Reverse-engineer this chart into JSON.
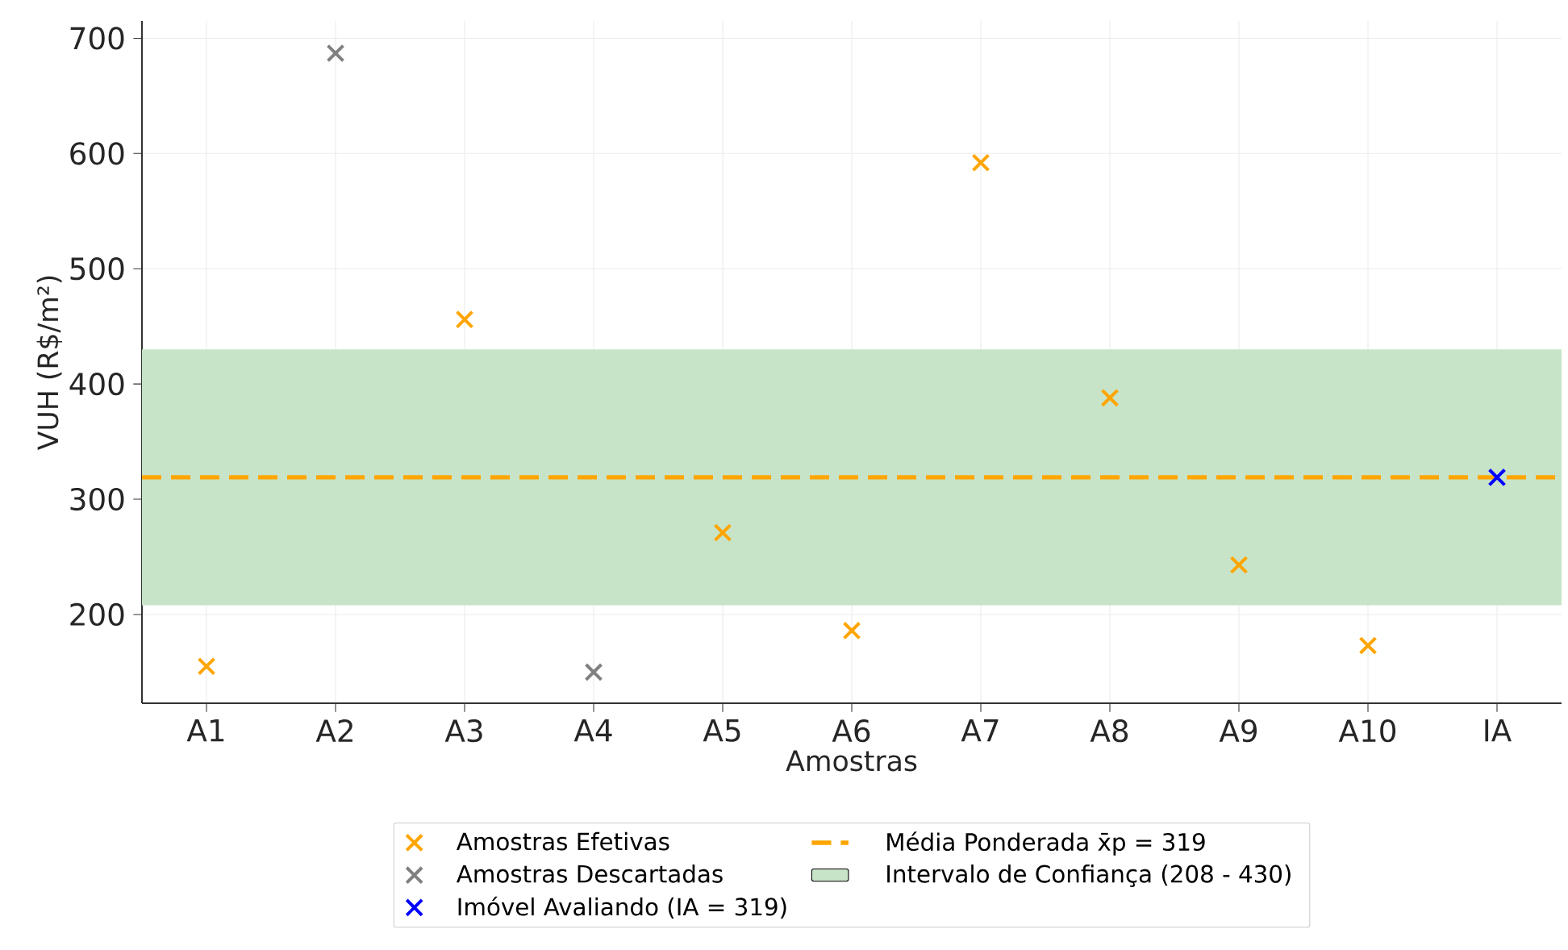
{
  "chart_data": {
    "type": "scatter",
    "xlabel": "Amostras",
    "ylabel": "VUH (R$/m²)",
    "categories": [
      "A1",
      "A2",
      "A3",
      "A4",
      "A5",
      "A6",
      "A7",
      "A8",
      "A9",
      "A10",
      "IA"
    ],
    "series": [
      {
        "name": "Amostras Efetivas",
        "color": "#ffa500",
        "values": [
          155,
          null,
          456,
          null,
          271,
          186,
          592,
          388,
          243,
          173,
          null
        ]
      },
      {
        "name": "Amostras Descartadas",
        "color": "#808080",
        "values": [
          null,
          687,
          null,
          150,
          null,
          null,
          null,
          null,
          null,
          null,
          null
        ]
      },
      {
        "name": "Imóvel Avaliando (IA = 319)",
        "color": "#0000ff",
        "values": [
          null,
          null,
          null,
          null,
          null,
          null,
          null,
          null,
          null,
          null,
          319
        ]
      }
    ],
    "ref_lines": [
      {
        "axis": "y",
        "value": 319,
        "label": "Média Ponderada x̄p = 319",
        "color": "#ffa500",
        "line_style": "dashed"
      }
    ],
    "bands": [
      {
        "axis": "y",
        "from": 208,
        "to": 430,
        "label": "Intervalo de Confiança (208 - 430)",
        "color": "#c8e4c8"
      }
    ],
    "ylim": [
      123,
      715
    ],
    "yticks": [
      200,
      300,
      400,
      500,
      600,
      700
    ],
    "grid": true,
    "legend": "bottom",
    "marker": "cross"
  }
}
